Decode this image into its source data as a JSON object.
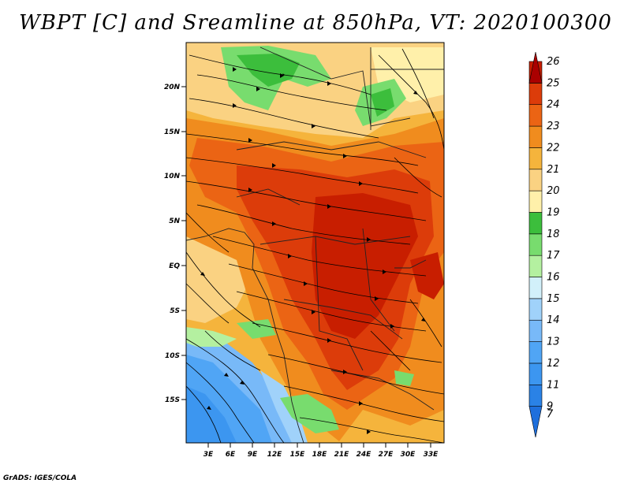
{
  "title": "WBPT [C] and Sreamline at 850hPa, VT: 2020100300",
  "credit": "GrADS: IGES/COLA",
  "map": {
    "lat_labels": [
      "20N",
      "15N",
      "10N",
      "5N",
      "EQ",
      "5S",
      "10S",
      "15S"
    ],
    "lon_labels": [
      "3E",
      "6E",
      "9E",
      "12E",
      "15E",
      "18E",
      "21E",
      "24E",
      "27E",
      "30E",
      "33E"
    ]
  },
  "colorbar": {
    "labels": [
      "7",
      "9",
      "11",
      "12",
      "13",
      "14",
      "15",
      "16",
      "17",
      "18",
      "19",
      "20",
      "21",
      "22",
      "23",
      "24",
      "25",
      "26"
    ],
    "colors": [
      "#1e6fdc",
      "#2a82e6",
      "#3c96f0",
      "#50a5f5",
      "#78b9f8",
      "#a0d2fa",
      "#d2f0fa",
      "#b4f0a0",
      "#78dc6e",
      "#3cbe3c",
      "#fff0aa",
      "#fad282",
      "#f5b43c",
      "#f08c1e",
      "#eb6414",
      "#dc3c0a",
      "#c81e00",
      "#aa0000"
    ]
  }
}
